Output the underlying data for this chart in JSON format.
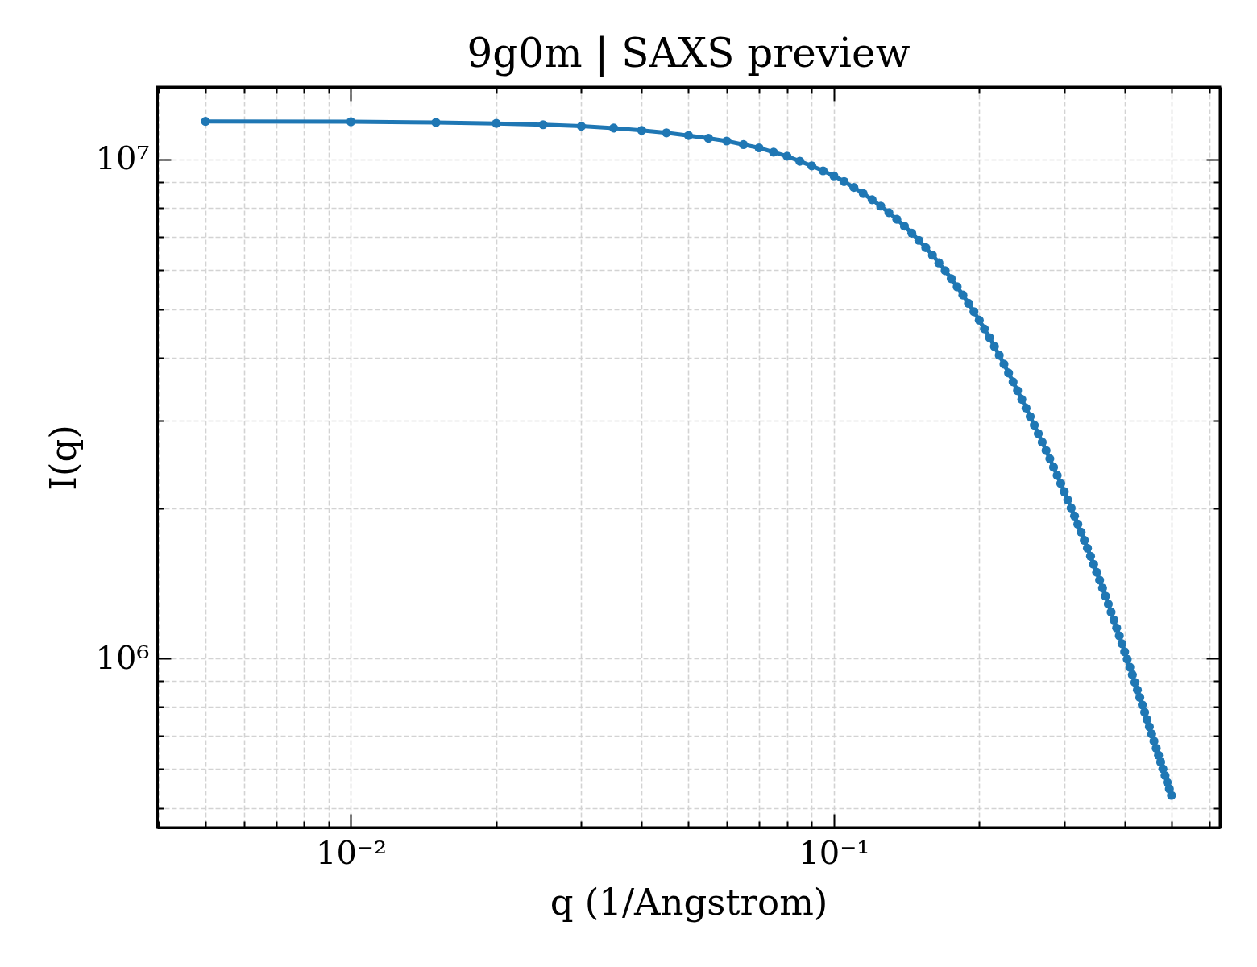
{
  "chart_data": {
    "type": "line",
    "title": "9g0m | SAXS preview",
    "xlabel": "q (1/Angstrom)",
    "ylabel": "I(q)",
    "log": "xy",
    "grid": true,
    "marker": "circle",
    "line_style": "solid",
    "xlim": [
      0.00397,
      0.63
    ],
    "ylim": [
      458000,
      13970000
    ],
    "xticks": [
      {
        "value": 0.004,
        "label": null
      },
      {
        "value": 0.005,
        "label": null
      },
      {
        "value": 0.006,
        "label": null
      },
      {
        "value": 0.007,
        "label": null
      },
      {
        "value": 0.008,
        "label": null
      },
      {
        "value": 0.009,
        "label": null
      },
      {
        "value": 0.01,
        "label": "10⁻²"
      },
      {
        "value": 0.02,
        "label": null
      },
      {
        "value": 0.03,
        "label": null
      },
      {
        "value": 0.04,
        "label": null
      },
      {
        "value": 0.05,
        "label": null
      },
      {
        "value": 0.06,
        "label": null
      },
      {
        "value": 0.07,
        "label": null
      },
      {
        "value": 0.08,
        "label": null
      },
      {
        "value": 0.09,
        "label": null
      },
      {
        "value": 0.1,
        "label": "10⁻¹"
      },
      {
        "value": 0.2,
        "label": null
      },
      {
        "value": 0.3,
        "label": null
      },
      {
        "value": 0.4,
        "label": null
      },
      {
        "value": 0.5,
        "label": null
      },
      {
        "value": 0.6,
        "label": null
      }
    ],
    "yticks": [
      {
        "value": 500000,
        "label": null
      },
      {
        "value": 600000,
        "label": null
      },
      {
        "value": 700000,
        "label": null
      },
      {
        "value": 800000,
        "label": null
      },
      {
        "value": 900000,
        "label": null
      },
      {
        "value": 1000000,
        "label": "10⁶"
      },
      {
        "value": 2000000,
        "label": null
      },
      {
        "value": 3000000,
        "label": null
      },
      {
        "value": 4000000,
        "label": null
      },
      {
        "value": 5000000,
        "label": null
      },
      {
        "value": 6000000,
        "label": null
      },
      {
        "value": 7000000,
        "label": null
      },
      {
        "value": 8000000,
        "label": null
      },
      {
        "value": 9000000,
        "label": null
      },
      {
        "value": 10000000,
        "label": "10⁷"
      }
    ],
    "x": [
      0.005,
      0.01,
      0.015,
      0.02,
      0.025,
      0.03,
      0.035,
      0.04,
      0.045,
      0.05,
      0.055,
      0.06,
      0.065,
      0.07,
      0.075,
      0.08,
      0.085,
      0.09,
      0.095,
      0.1,
      0.105,
      0.11,
      0.115,
      0.12,
      0.125,
      0.13,
      0.135,
      0.14,
      0.145,
      0.15,
      0.155,
      0.16,
      0.165,
      0.17,
      0.175,
      0.18,
      0.185,
      0.19,
      0.195,
      0.2,
      0.205,
      0.21,
      0.215,
      0.22,
      0.225,
      0.23,
      0.235,
      0.24,
      0.245,
      0.25,
      0.255,
      0.26,
      0.265,
      0.27,
      0.275,
      0.28,
      0.285,
      0.29,
      0.295,
      0.3,
      0.305,
      0.31,
      0.315,
      0.32,
      0.325,
      0.33,
      0.335,
      0.34,
      0.345,
      0.35,
      0.355,
      0.36,
      0.365,
      0.37,
      0.375,
      0.38,
      0.385,
      0.39,
      0.395,
      0.4,
      0.405,
      0.41,
      0.415,
      0.42,
      0.425,
      0.43,
      0.435,
      0.44,
      0.445,
      0.45,
      0.455,
      0.46,
      0.465,
      0.47,
      0.475,
      0.48,
      0.485,
      0.49,
      0.495,
      0.5
    ],
    "series": [
      {
        "color": "#1f77b4",
        "values": [
          11920000,
          11900000,
          11860000,
          11810000,
          11740000,
          11660000,
          11560000,
          11440000,
          11310000,
          11170000,
          11030000,
          10890000,
          10710000,
          10550000,
          10340000,
          10150000,
          9920000,
          9710000,
          9490000,
          9270000,
          9031000,
          8789000,
          8547000,
          8305000,
          8065000,
          7825000,
          7587000,
          7351000,
          7117000,
          6885000,
          6655000,
          6429000,
          6206000,
          5986000,
          5769000,
          5556000,
          5349000,
          5148000,
          4953000,
          4763000,
          4576000,
          4394000,
          4219000,
          4050000,
          3888000,
          3732000,
          3583000,
          3441000,
          3305000,
          3175000,
          3052000,
          2934000,
          2821000,
          2713000,
          2610000,
          2512000,
          2417000,
          2327000,
          2241000,
          2158000,
          2078000,
          2002000,
          1929000,
          1858000,
          1791000,
          1725000,
          1663000,
          1602000,
          1544000,
          1488000,
          1435000,
          1383000,
          1333000,
          1285000,
          1238000,
          1194000,
          1151000,
          1110000,
          1070000,
          1031000,
          996000,
          960300,
          927000,
          894900,
          864100,
          834700,
          806900,
          779800,
          754100,
          729300,
          705600,
          682600,
          660700,
          639600,
          619700,
          600500,
          582000,
          564400,
          547600,
          531400
        ]
      }
    ]
  }
}
